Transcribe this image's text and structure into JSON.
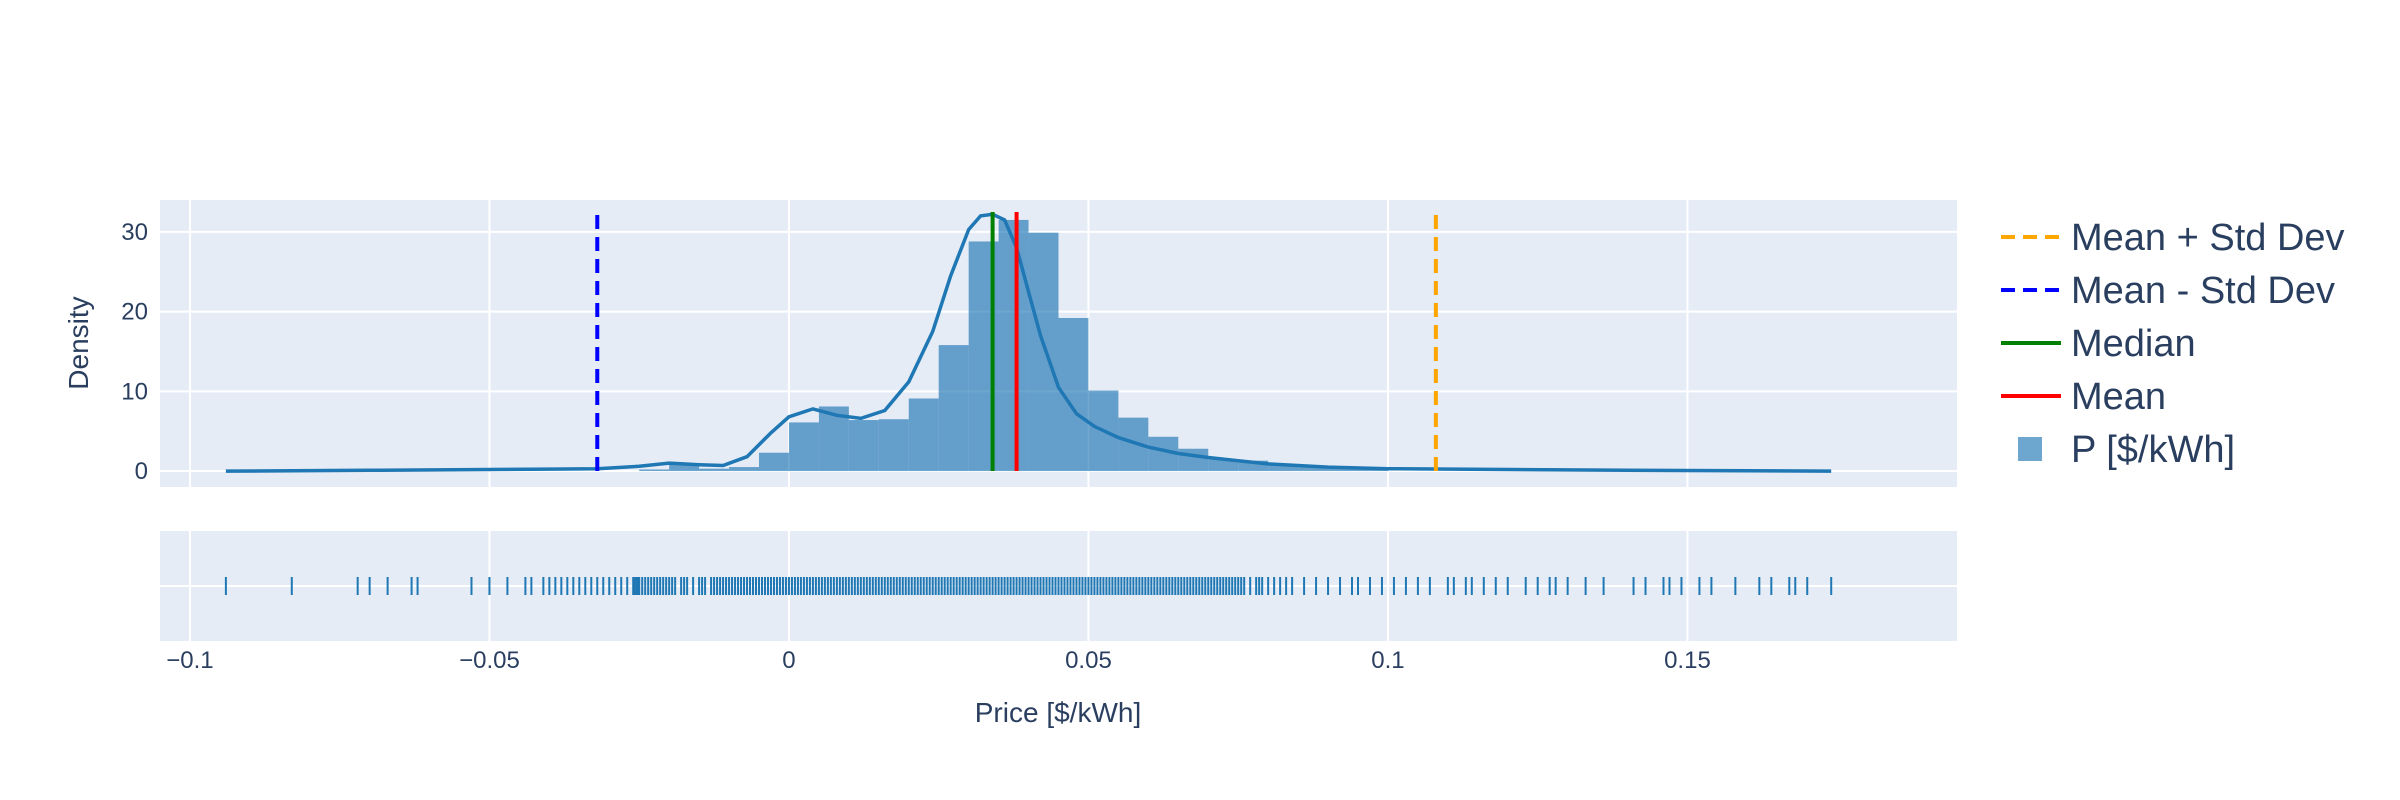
{
  "chart_data": {
    "type": "histogram",
    "xlabel": "Price [$/kWh]",
    "ylabel": "Density",
    "xlim": [
      -0.105,
      0.195
    ],
    "ylim": [
      -2,
      34
    ],
    "xticks": [
      {
        "value": -0.1,
        "label": "−0.1"
      },
      {
        "value": -0.05,
        "label": "−0.05"
      },
      {
        "value": 0,
        "label": "0"
      },
      {
        "value": 0.05,
        "label": "0.05"
      },
      {
        "value": 0.1,
        "label": "0.1"
      },
      {
        "value": 0.15,
        "label": "0.15"
      }
    ],
    "yticks": [
      {
        "value": 0,
        "label": "0"
      },
      {
        "value": 10,
        "label": "10"
      },
      {
        "value": 20,
        "label": "20"
      },
      {
        "value": 30,
        "label": "30"
      }
    ],
    "grid": true,
    "legend_position": "right",
    "histogram": {
      "name": "P [$/kWh]",
      "color": "#1f77b4",
      "bin_edges": [
        -0.025,
        -0.02,
        -0.015,
        -0.01,
        -0.005,
        0,
        0.005,
        0.01,
        0.015,
        0.02,
        0.025,
        0.03,
        0.035,
        0.04,
        0.045,
        0.05,
        0.055,
        0.06,
        0.065,
        0.07,
        0.075,
        0.08,
        0.085,
        0.09,
        0.095,
        0.1
      ],
      "density": [
        0.2,
        0.8,
        0.3,
        0.5,
        2.3,
        6.1,
        8.1,
        6.4,
        6.5,
        9.1,
        15.8,
        28.8,
        31.5,
        29.9,
        19.2,
        10.1,
        6.7,
        4.3,
        2.8,
        1.5,
        1.3,
        0.7,
        0.5,
        0.3,
        0.2
      ]
    },
    "kde": {
      "color": "#1f77b4",
      "x": [
        -0.094,
        -0.07,
        -0.05,
        -0.04,
        -0.032,
        -0.025,
        -0.02,
        -0.015,
        -0.011,
        -0.007,
        -0.003,
        0,
        0.004,
        0.008,
        0.012,
        0.016,
        0.02,
        0.024,
        0.027,
        0.03,
        0.032,
        0.034,
        0.036,
        0.038,
        0.04,
        0.042,
        0.045,
        0.048,
        0.051,
        0.055,
        0.06,
        0.065,
        0.07,
        0.075,
        0.08,
        0.09,
        0.1,
        0.12,
        0.14,
        0.16,
        0.174
      ],
      "y": [
        0,
        0.1,
        0.2,
        0.25,
        0.3,
        0.6,
        1.0,
        0.8,
        0.7,
        1.8,
        4.8,
        6.8,
        7.8,
        7.0,
        6.6,
        7.6,
        11.2,
        17.5,
        24.5,
        30.3,
        32.0,
        32.2,
        31.5,
        28.0,
        22.5,
        17.0,
        10.5,
        7.2,
        5.6,
        4.2,
        3.0,
        2.2,
        1.7,
        1.3,
        0.9,
        0.5,
        0.3,
        0.2,
        0.1,
        0.05,
        0
      ]
    },
    "vlines": [
      {
        "name": "Mean + Std Dev",
        "x": 0.108,
        "color": "#ffa500",
        "dash": "dash"
      },
      {
        "name": "Mean - Std Dev",
        "x": -0.032,
        "color": "#0000ff",
        "dash": "dash"
      },
      {
        "name": "Median",
        "x": 0.034,
        "color": "#008000",
        "dash": "solid"
      },
      {
        "name": "Mean",
        "x": 0.038,
        "color": "#ff0000",
        "dash": "solid"
      }
    ],
    "rug": [
      -0.094,
      -0.083,
      -0.072,
      -0.07,
      -0.067,
      -0.063,
      -0.062,
      -0.053,
      -0.05,
      -0.047,
      -0.044,
      -0.043,
      -0.041,
      -0.04,
      -0.039,
      -0.038,
      -0.037,
      -0.036,
      -0.035,
      -0.034,
      -0.033,
      -0.032,
      -0.031,
      -0.03,
      -0.029,
      -0.028,
      -0.027,
      -0.026,
      -0.0258,
      -0.0255,
      -0.0252,
      -0.025,
      -0.0245,
      -0.024,
      -0.0235,
      -0.023,
      -0.0225,
      -0.022,
      -0.0215,
      -0.021,
      -0.0205,
      -0.02,
      -0.0195,
      -0.019,
      -0.018,
      -0.0175,
      -0.017,
      -0.016,
      -0.015,
      -0.0145,
      -0.014,
      -0.013,
      -0.0125,
      -0.012,
      -0.0115,
      -0.011,
      -0.0105,
      -0.01,
      -0.0095,
      -0.009,
      -0.0085,
      -0.008,
      -0.0075,
      -0.007,
      -0.0065,
      -0.006,
      -0.0055,
      -0.005,
      -0.0045,
      -0.004,
      -0.0035,
      -0.003,
      -0.0025,
      -0.002,
      -0.0015,
      -0.001,
      -0.0005,
      0,
      0.0005,
      0.001,
      0.0015,
      0.002,
      0.0025,
      0.003,
      0.0035,
      0.004,
      0.0045,
      0.005,
      0.0055,
      0.006,
      0.0065,
      0.007,
      0.0075,
      0.008,
      0.0085,
      0.009,
      0.0095,
      0.01,
      0.0105,
      0.011,
      0.0115,
      0.012,
      0.0125,
      0.013,
      0.0135,
      0.014,
      0.0145,
      0.015,
      0.0155,
      0.016,
      0.0165,
      0.017,
      0.0175,
      0.018,
      0.0185,
      0.019,
      0.0195,
      0.02,
      0.0205,
      0.021,
      0.0215,
      0.022,
      0.0225,
      0.023,
      0.0235,
      0.024,
      0.0245,
      0.025,
      0.0255,
      0.026,
      0.0265,
      0.027,
      0.0275,
      0.028,
      0.0285,
      0.029,
      0.0295,
      0.03,
      0.0305,
      0.031,
      0.0315,
      0.032,
      0.0325,
      0.033,
      0.0335,
      0.034,
      0.0345,
      0.035,
      0.0355,
      0.036,
      0.0365,
      0.037,
      0.0375,
      0.038,
      0.0385,
      0.039,
      0.0395,
      0.04,
      0.0405,
      0.041,
      0.0415,
      0.042,
      0.0425,
      0.043,
      0.0435,
      0.044,
      0.0445,
      0.045,
      0.0455,
      0.046,
      0.0465,
      0.047,
      0.0475,
      0.048,
      0.0485,
      0.049,
      0.0495,
      0.05,
      0.0505,
      0.051,
      0.0515,
      0.052,
      0.0525,
      0.053,
      0.0535,
      0.054,
      0.0545,
      0.055,
      0.0555,
      0.056,
      0.0565,
      0.057,
      0.0575,
      0.058,
      0.0585,
      0.059,
      0.0595,
      0.06,
      0.0605,
      0.061,
      0.0615,
      0.062,
      0.0625,
      0.063,
      0.0635,
      0.064,
      0.0645,
      0.065,
      0.0655,
      0.066,
      0.0665,
      0.067,
      0.0675,
      0.068,
      0.0685,
      0.069,
      0.0695,
      0.07,
      0.0705,
      0.071,
      0.0715,
      0.072,
      0.0725,
      0.073,
      0.0735,
      0.074,
      0.0745,
      0.075,
      0.0755,
      0.076,
      0.077,
      0.078,
      0.0785,
      0.079,
      0.08,
      0.081,
      0.082,
      0.083,
      0.084,
      0.086,
      0.088,
      0.09,
      0.092,
      0.094,
      0.095,
      0.097,
      0.099,
      0.101,
      0.103,
      0.105,
      0.107,
      0.11,
      0.111,
      0.113,
      0.114,
      0.116,
      0.118,
      0.12,
      0.123,
      0.125,
      0.127,
      0.128,
      0.13,
      0.133,
      0.136,
      0.141,
      0.143,
      0.146,
      0.147,
      0.149,
      0.152,
      0.154,
      0.158,
      0.162,
      0.164,
      0.167,
      0.168,
      0.17,
      0.174
    ]
  }
}
